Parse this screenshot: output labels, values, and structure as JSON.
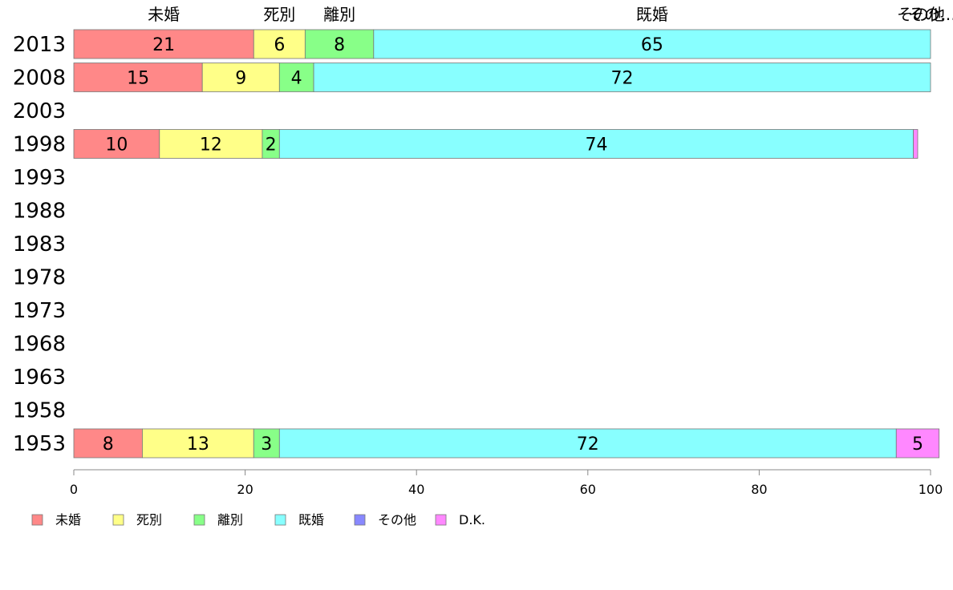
{
  "chart_data": {
    "type": "bar",
    "orientation": "horizontal",
    "stacked": true,
    "categories": [
      "2013",
      "2008",
      "2003",
      "1998",
      "1993",
      "1988",
      "1983",
      "1978",
      "1973",
      "1968",
      "1963",
      "1958",
      "1953"
    ],
    "series": [
      {
        "name": "未婚",
        "color": "#ff8888",
        "values": [
          21,
          15,
          null,
          10,
          null,
          null,
          null,
          null,
          null,
          null,
          null,
          null,
          8
        ]
      },
      {
        "name": "死別",
        "color": "#ffff88",
        "values": [
          6,
          9,
          null,
          12,
          null,
          null,
          null,
          null,
          null,
          null,
          null,
          null,
          13
        ]
      },
      {
        "name": "離別",
        "color": "#88ff88",
        "values": [
          8,
          4,
          null,
          2,
          null,
          null,
          null,
          null,
          null,
          null,
          null,
          null,
          3
        ]
      },
      {
        "name": "既婚",
        "color": "#88ffff",
        "values": [
          65,
          72,
          null,
          74,
          null,
          null,
          null,
          null,
          null,
          null,
          null,
          null,
          72
        ]
      },
      {
        "name": "その他",
        "color": "#8888ff",
        "values": [
          0,
          0,
          null,
          0,
          null,
          null,
          null,
          null,
          null,
          null,
          null,
          null,
          0
        ]
      },
      {
        "name": "D.K.",
        "color": "#ff88ff",
        "values": [
          0,
          0,
          null,
          0.5,
          null,
          null,
          null,
          null,
          null,
          null,
          null,
          null,
          5
        ]
      }
    ],
    "segment_labels": [
      [
        "21",
        "6",
        "8",
        "65",
        "",
        ""
      ],
      [
        "15",
        "9",
        "4",
        "72",
        "",
        ""
      ],
      [],
      [
        "10",
        "12",
        "2",
        "74",
        "",
        ""
      ],
      [],
      [],
      [],
      [],
      [],
      [],
      [],
      [],
      [
        "8",
        "13",
        "3",
        "72",
        "",
        "5"
      ]
    ],
    "top_labels": [
      "未婚",
      "死別",
      "離別",
      "既婚",
      "その…"
    ],
    "top_labels_overlap": "その他",
    "xlim": [
      0,
      100
    ],
    "xticks": [
      "0",
      "20",
      "40",
      "60",
      "80",
      "100"
    ],
    "legend_position": "bottom-left",
    "legend": [
      "未婚",
      "死別",
      "離別",
      "既婚",
      "その他",
      "D.K."
    ],
    "grid": false
  }
}
